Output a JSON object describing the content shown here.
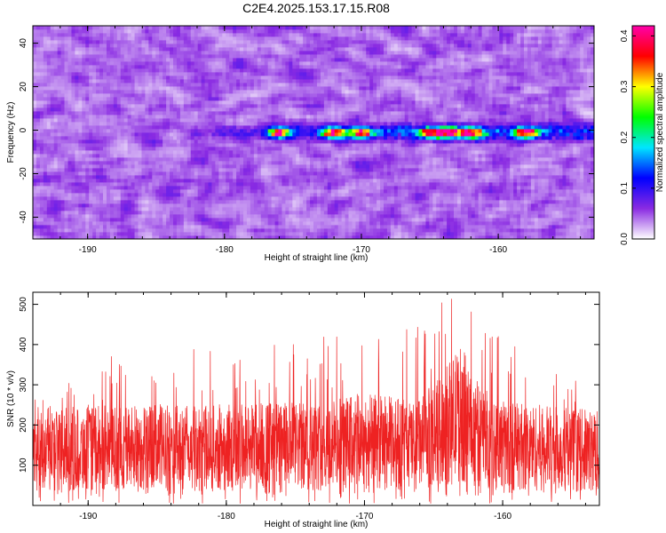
{
  "title": "C2E4.2025.153.17.15.R08",
  "colors": {
    "snr_line": "#ee2222",
    "axis": "#000000",
    "background": "#ffffff"
  },
  "chart_data": [
    {
      "type": "heatmap",
      "xlabel": "Height of straight line (km)",
      "ylabel": "Frequency (Hz)",
      "xlim": [
        -194,
        -153
      ],
      "ylim": [
        -50,
        48
      ],
      "x_ticks": [
        "-190",
        "-180",
        "-170",
        "-160"
      ],
      "y_ticks": [
        "-40",
        "-20",
        "0",
        "20",
        "40"
      ],
      "x_tick_values": [
        -190,
        -180,
        -170,
        -160
      ],
      "y_tick_values": [
        -40,
        -20,
        0,
        20,
        40
      ],
      "colorbar": {
        "label": "Normalized spectral amplitude",
        "range": [
          0.0,
          0.42
        ],
        "ticks": [
          "0.0",
          "0.1",
          "0.2",
          "0.3",
          "0.4"
        ],
        "tick_values": [
          0.0,
          0.1,
          0.2,
          0.3,
          0.4
        ],
        "colormap": [
          "#ffffff",
          "#8a2be2",
          "#0000ff",
          "#00e5ff",
          "#00ff00",
          "#ffff00",
          "#ff0000",
          "#ff00aa"
        ]
      },
      "features": {
        "background_amplitude_range": [
          0.0,
          0.08
        ],
        "band_center_hz": -1,
        "band_amplitude_peak": 0.42,
        "band_hot_spots_km": [
          -176,
          -172,
          -170,
          -165,
          -163.5,
          -162,
          -158
        ]
      }
    },
    {
      "type": "line",
      "xlabel": "Height of straight line (km)",
      "ylabel": "SNR (10 * v/v)",
      "xlim": [
        -194,
        -153
      ],
      "ylim": [
        0,
        530
      ],
      "x_ticks": [
        "-190",
        "-180",
        "-170",
        "-160"
      ],
      "y_ticks": [
        "100",
        "200",
        "300",
        "400",
        "500"
      ],
      "x_tick_values": [
        -190,
        -180,
        -170,
        -160
      ],
      "y_tick_values": [
        100,
        200,
        300,
        400,
        500
      ],
      "series": [
        {
          "envelope_x": [
            -194,
            -190,
            -186,
            -182,
            -178,
            -174,
            -170,
            -166,
            -164,
            -163,
            -162,
            -160,
            -158,
            -156,
            -153
          ],
          "baseline_y": [
            140,
            140,
            145,
            140,
            150,
            145,
            160,
            150,
            200,
            230,
            180,
            150,
            145,
            140,
            135
          ],
          "spike_max_y": [
            260,
            330,
            430,
            400,
            400,
            420,
            430,
            460,
            520,
            530,
            500,
            420,
            390,
            360,
            250
          ]
        }
      ]
    }
  ]
}
